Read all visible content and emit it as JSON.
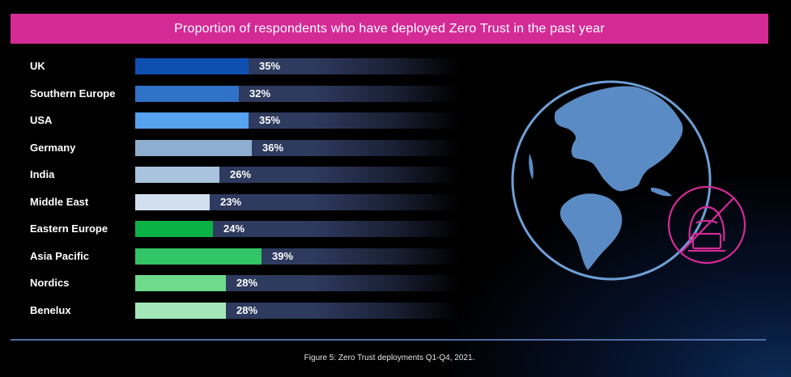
{
  "chart_data": {
    "type": "bar",
    "orientation": "horizontal",
    "title": "Proportion of respondents who have deployed Zero Trust in the past year",
    "caption": "Figure 5: Zero Trust deployments Q1-Q4, 2021.",
    "value_suffix": "%",
    "xlim": [
      0,
      100
    ],
    "categories": [
      "UK",
      "Southern Europe",
      "USA",
      "Germany",
      "India",
      "Middle East",
      "Eastern Europe",
      "Asia Pacific",
      "Nordics",
      "Benelux"
    ],
    "values": [
      35,
      32,
      35,
      36,
      26,
      23,
      24,
      39,
      28,
      28
    ],
    "labels": [
      "35%",
      "32%",
      "35%",
      "36%",
      "26%",
      "23%",
      "24%",
      "39%",
      "28%",
      "28%"
    ],
    "bar_colors": [
      "#0f4fb0",
      "#2f72c6",
      "#56a2ee",
      "#8eaed0",
      "#a9c3de",
      "#d2dfee",
      "#0bb145",
      "#32c466",
      "#6fd98c",
      "#a3e7b8"
    ]
  },
  "colors": {
    "banner": "#d42a96",
    "track": "#2e3a5e",
    "globe_stroke": "#6f9fd6",
    "continents": "#5b8bc4",
    "hacker_icon": "#d42a96"
  },
  "icons": [
    "globe-icon",
    "hacker-icon"
  ]
}
